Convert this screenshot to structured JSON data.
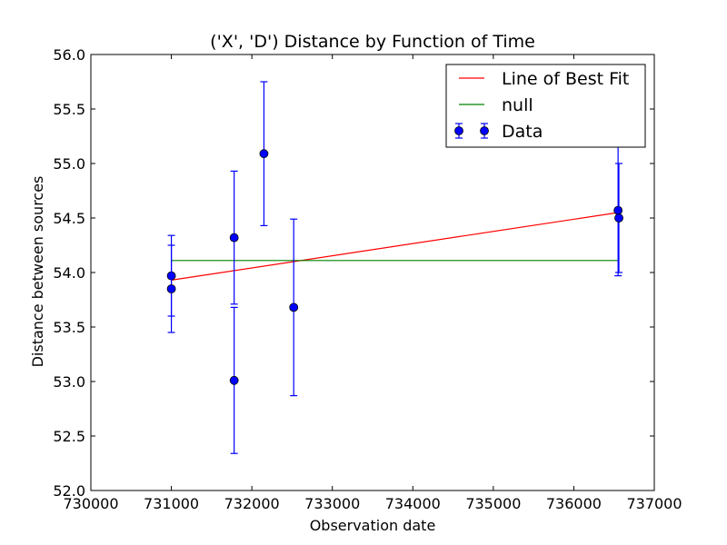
{
  "chart_data": {
    "type": "scatter",
    "title": "('X', 'D') Distance by Function of Time",
    "xlabel": "Observation date",
    "ylabel": "Distance between sources",
    "xlim": [
      730000,
      737000
    ],
    "ylim": [
      52.0,
      56.0
    ],
    "xticks": [
      "730000",
      "731000",
      "732000",
      "733000",
      "734000",
      "735000",
      "736000",
      "737000"
    ],
    "yticks": [
      "52.0",
      "52.5",
      "53.0",
      "53.5",
      "54.0",
      "54.5",
      "55.0",
      "55.5",
      "56.0"
    ],
    "grid": false,
    "legend_position": "top-right",
    "series": [
      {
        "name": "Line of Best Fit",
        "kind": "line",
        "color": "#ff0000",
        "x": [
          731000,
          736550
        ],
        "y": [
          53.93,
          54.55
        ]
      },
      {
        "name": "null",
        "kind": "line",
        "color": "#008000",
        "x": [
          731000,
          736550
        ],
        "y": [
          54.11,
          54.11
        ]
      },
      {
        "name": "Data",
        "kind": "errorbar",
        "color": "#0000ff",
        "points": [
          {
            "x": 731000,
            "y": 53.97,
            "err": 0.37
          },
          {
            "x": 731000,
            "y": 53.85,
            "err": 0.4
          },
          {
            "x": 731780,
            "y": 54.32,
            "err": 0.61
          },
          {
            "x": 731780,
            "y": 53.01,
            "err": 0.67
          },
          {
            "x": 732150,
            "y": 55.09,
            "err": 0.66
          },
          {
            "x": 732520,
            "y": 53.68,
            "err": 0.81
          },
          {
            "x": 736550,
            "y": 54.57,
            "err": 0.6
          },
          {
            "x": 736560,
            "y": 54.5,
            "err": 0.5
          }
        ]
      }
    ]
  }
}
